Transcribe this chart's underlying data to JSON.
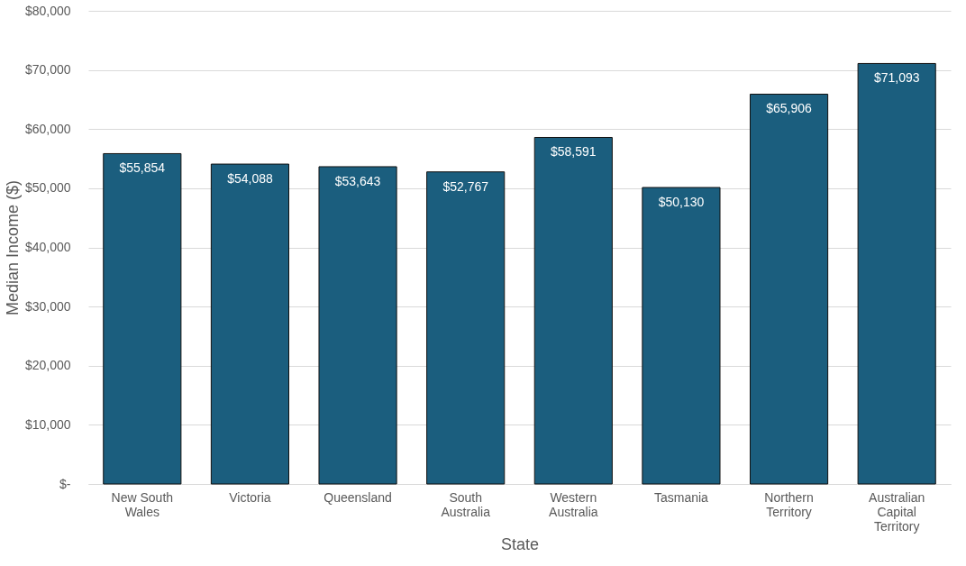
{
  "chart_data": {
    "type": "bar",
    "xlabel": "State",
    "ylabel": "Median Income ($)",
    "categories": [
      "New South Wales",
      "Victoria",
      "Queensland",
      "South Australia",
      "Western Australia",
      "Tasmania",
      "Northern Territory",
      "Australian Capital Territory"
    ],
    "values": [
      55854,
      54088,
      53643,
      52767,
      58591,
      50130,
      65906,
      71093
    ],
    "value_labels": [
      "$55,854",
      "$54,088",
      "$53,643",
      "$52,767",
      "$58,591",
      "$50,130",
      "$65,906",
      "$71,093"
    ],
    "color": "#1b5e7e",
    "ylim": [
      0,
      80000
    ],
    "yticks": [
      {
        "value": 0,
        "label": "$-"
      },
      {
        "value": 10000,
        "label": "$10,000"
      },
      {
        "value": 20000,
        "label": "$20,000"
      },
      {
        "value": 30000,
        "label": "$30,000"
      },
      {
        "value": 40000,
        "label": "$40,000"
      },
      {
        "value": 50000,
        "label": "$50,000"
      },
      {
        "value": 60000,
        "label": "$60,000"
      },
      {
        "value": 70000,
        "label": "$70,000"
      },
      {
        "value": 80000,
        "label": "$80,000"
      }
    ],
    "grid": "y"
  }
}
